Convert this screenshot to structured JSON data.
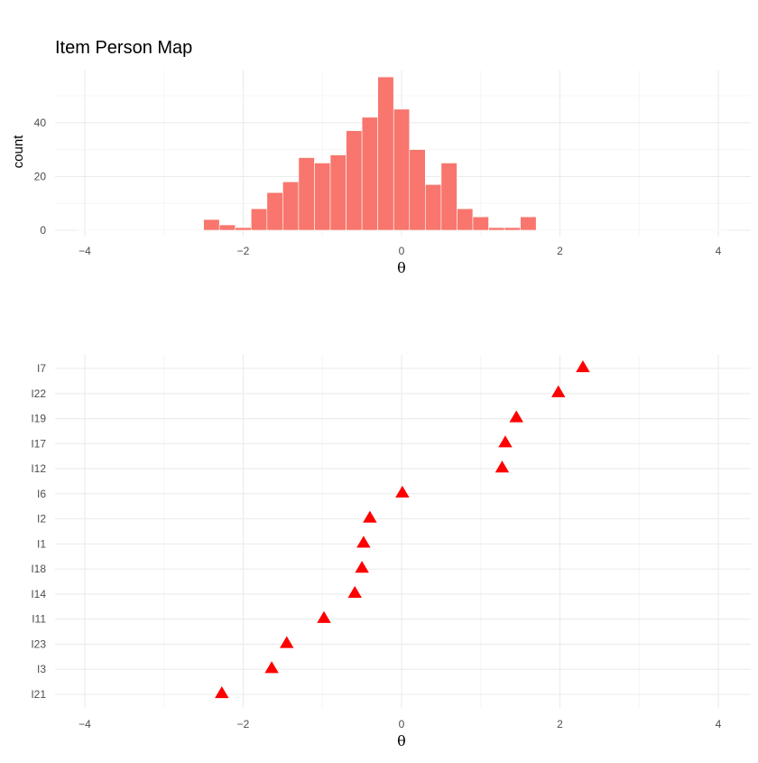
{
  "title": "Item Person Map",
  "colors": {
    "bar_fill": "#F8766D",
    "triangle_fill": "#FF0000",
    "grid_major": "#EBEBEB",
    "grid_minor": "#F5F5F5",
    "tick_text": "#4D4D4D"
  },
  "chart_data": [
    {
      "type": "bar",
      "subtype": "histogram",
      "title": "Item Person Map",
      "xlabel": "θ",
      "ylabel": "count",
      "xlim": [
        -4,
        4
      ],
      "ylim": [
        0,
        58
      ],
      "x_ticks": [
        -4,
        -2,
        0,
        2,
        4
      ],
      "y_ticks": [
        0,
        20,
        40
      ],
      "bin_width": 0.2,
      "bin_centers": [
        -4.0,
        -3.8,
        -3.6,
        -3.4,
        -3.2,
        -3.0,
        -2.8,
        -2.6,
        -2.4,
        -2.2,
        -2.0,
        -1.8,
        -1.6,
        -1.4,
        -1.2,
        -1.0,
        -0.8,
        -0.6,
        -0.4,
        -0.2,
        0.0,
        0.2,
        0.4,
        0.6,
        0.8,
        1.0,
        1.2,
        1.4,
        1.6,
        1.8,
        2.0,
        2.2,
        2.4,
        2.6,
        2.8,
        3.0,
        3.2,
        3.4,
        3.6,
        3.8,
        4.0
      ],
      "values": [
        0,
        0,
        0,
        0,
        0,
        0,
        0,
        0,
        4,
        2,
        1,
        8,
        14,
        18,
        27,
        25,
        28,
        37,
        42,
        57,
        45,
        30,
        17,
        25,
        8,
        5,
        1,
        1,
        5,
        0,
        0,
        0,
        0,
        0,
        0,
        0,
        0,
        0,
        0,
        0,
        0
      ],
      "grid": true,
      "legend": "none"
    },
    {
      "type": "scatter",
      "marker": "triangle",
      "xlabel": "θ",
      "xlim": [
        -4,
        4
      ],
      "x_ticks": [
        -4,
        -2,
        0,
        2,
        4
      ],
      "categories": [
        "I21",
        "I3",
        "I23",
        "I11",
        "I14",
        "I18",
        "I1",
        "I2",
        "I6",
        "I12",
        "I17",
        "I19",
        "I22",
        "I7"
      ],
      "values": [
        -2.27,
        -1.64,
        -1.45,
        -0.98,
        -0.59,
        -0.5,
        -0.48,
        -0.4,
        0.01,
        1.27,
        1.31,
        1.45,
        1.98,
        2.29
      ],
      "grid": true,
      "legend": "none"
    }
  ]
}
